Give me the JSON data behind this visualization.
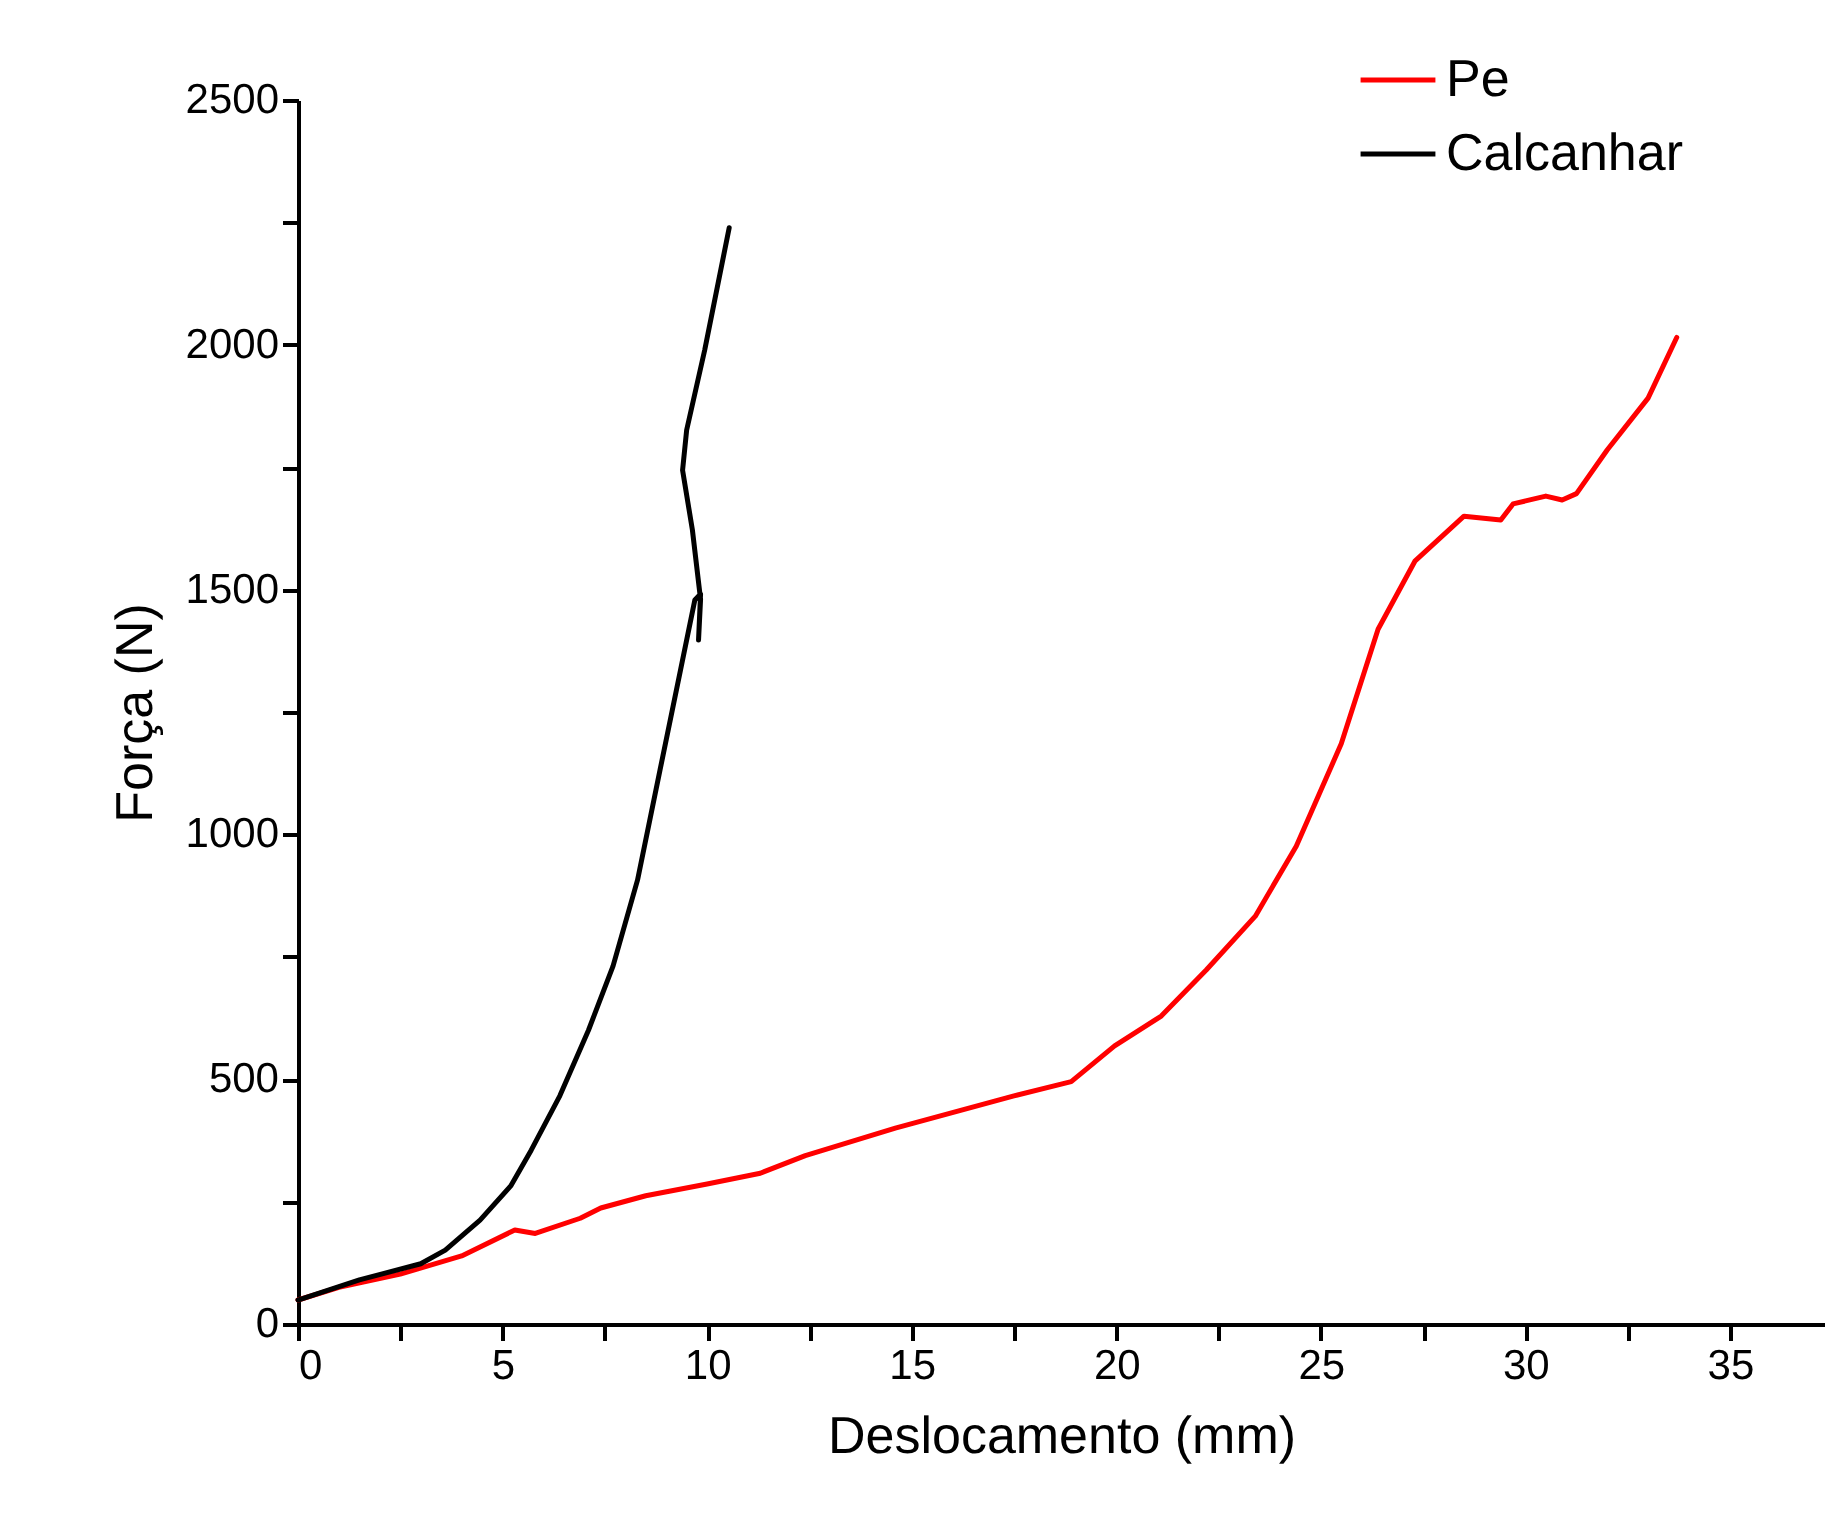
{
  "chart_data": {
    "type": "line",
    "xlabel": "Deslocamento (mm)",
    "ylabel": "Força (N)",
    "legend": "top right",
    "xlim": [
      0,
      37.3
    ],
    "ylim": [
      0,
      2500
    ],
    "xticks": [
      0,
      {
        "value": 2.5,
        "label": null
      },
      5,
      {
        "value": 7.5,
        "label": null
      },
      10,
      {
        "value": 12.5,
        "label": null
      },
      15,
      {
        "value": 17.5,
        "label": null
      },
      20,
      {
        "value": 22.5,
        "label": null
      },
      25,
      {
        "value": 27.5,
        "label": null
      },
      30,
      {
        "value": 32.5,
        "label": null
      },
      35
    ],
    "yticks": [
      0,
      {
        "value": 250,
        "label": null
      },
      500,
      {
        "value": 750,
        "label": null
      },
      1000,
      {
        "value": 1250,
        "label": null
      },
      1500,
      {
        "value": 1750,
        "label": null
      },
      2000,
      {
        "value": 2250,
        "label": null
      },
      2500
    ],
    "series": [
      {
        "name": "Pe",
        "color": "#ff0000",
        "x": [
          0,
          1,
          2.5,
          4,
          5.3,
          5.8,
          6.9,
          7.4,
          8.5,
          10,
          11.3,
          12.4,
          14.6,
          17.5,
          18.9,
          19.96,
          21.1,
          22.2,
          23.4,
          24.4,
          25.5,
          26.4,
          27.3,
          28.5,
          29.4,
          29.7,
          30.5,
          30.9,
          31.25,
          32,
          33,
          33.7
        ],
        "values": [
          49,
          75,
          102,
          139,
          192,
          185,
          216,
          237,
          262,
          286,
          308,
          344,
          400,
          466,
          495,
          568,
          629,
          723,
          833,
          976,
          1185,
          1419,
          1558,
          1650,
          1642,
          1675,
          1691,
          1683,
          1696,
          1785,
          1891,
          2015
        ]
      },
      {
        "name": "Calcanhar",
        "color": "#000000",
        "x": [
          0,
          1.5,
          3,
          3.6,
          4.45,
          5.2,
          5.7,
          6.4,
          7.1,
          7.7,
          8.3,
          8.85,
          9.35,
          9.7,
          9.84,
          9.79,
          9.84,
          9.64,
          9.4,
          9.5,
          9.94,
          10.54
        ],
        "values": [
          49,
          90,
          123,
          151,
          212,
          282,
          355,
          466,
          600,
          731,
          907,
          1132,
          1336,
          1479,
          1491,
          1397,
          1480,
          1622,
          1744,
          1826,
          1989,
          2239
        ]
      }
    ]
  }
}
